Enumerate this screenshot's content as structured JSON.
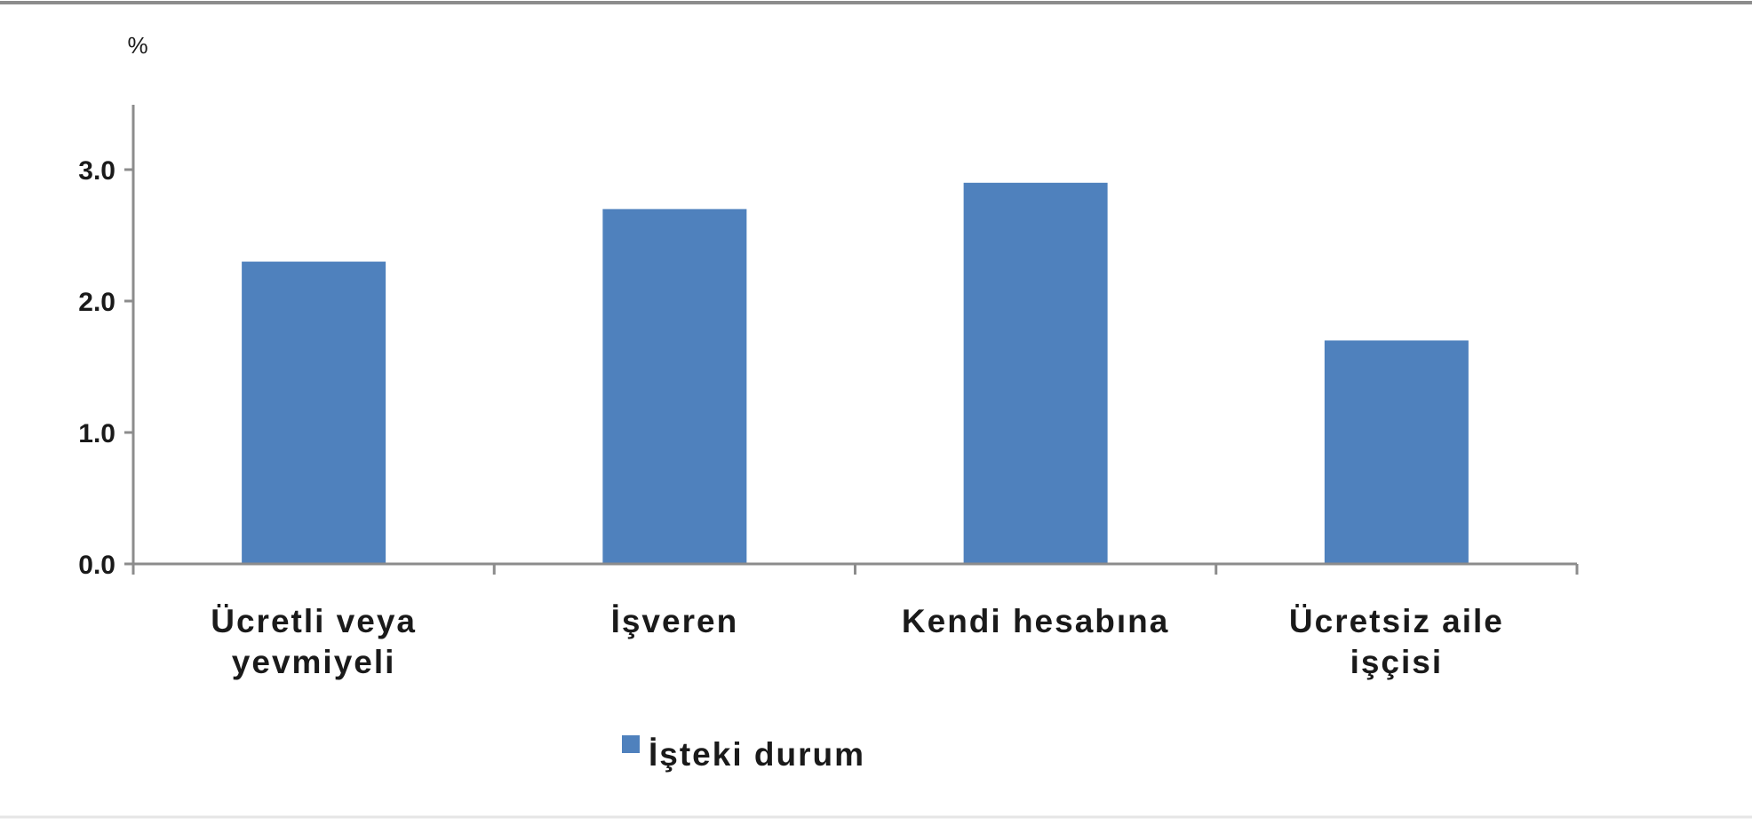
{
  "chart_data": {
    "type": "bar",
    "unit_label": "%",
    "categories": [
      [
        "Ücretli veya",
        "yevmiyeli"
      ],
      [
        "İşveren"
      ],
      [
        "Kendi hesabına"
      ],
      [
        "Ücretsiz aile",
        "işçisi"
      ]
    ],
    "series": [
      {
        "name": "İşteki durum",
        "color": "#4F81BD",
        "values": [
          2.3,
          2.7,
          2.9,
          1.7
        ]
      }
    ],
    "yticks": [
      "0.0",
      "1.0",
      "2.0",
      "3.0"
    ],
    "ylim": [
      0,
      3.5
    ],
    "grid": false,
    "legend_position": "bottom"
  }
}
